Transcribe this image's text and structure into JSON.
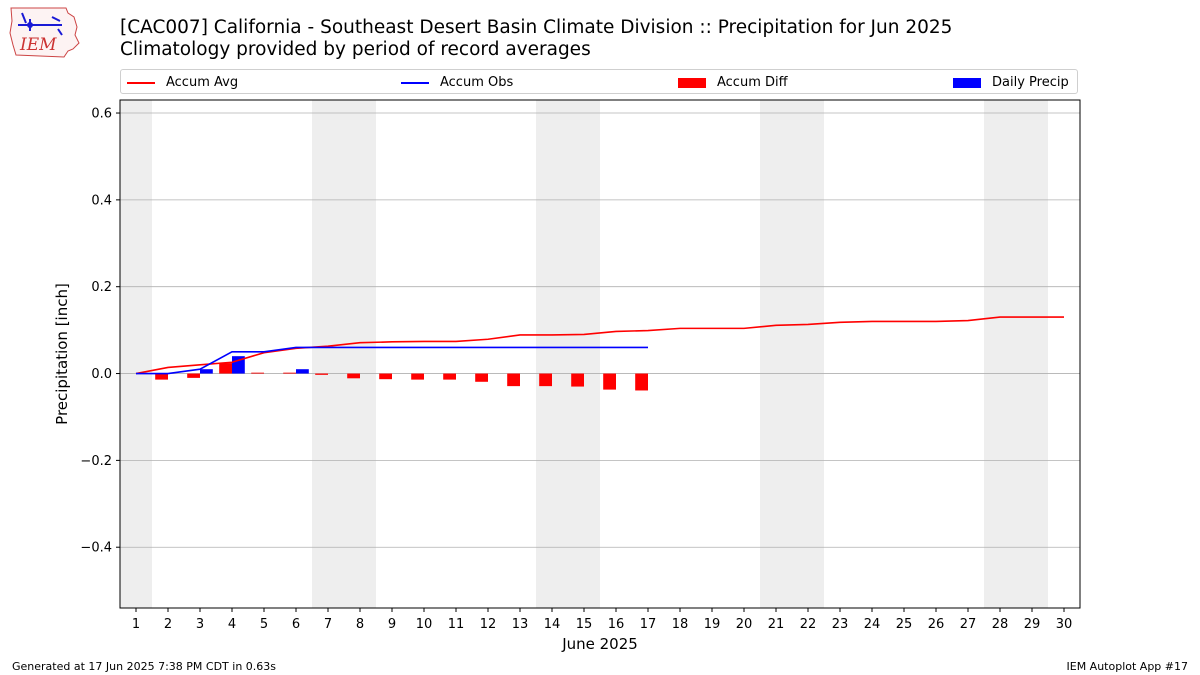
{
  "header": {
    "title_line1": "[CAC007] California - Southeast Desert Basin Climate Division :: Precipitation for Jun 2025",
    "title_line2": "Climatology provided by period of record averages",
    "logo_text": "IEM"
  },
  "legend": {
    "accum_avg": "Accum Avg",
    "accum_obs": "Accum Obs",
    "accum_diff": "Accum Diff",
    "daily_precip": "Daily Precip"
  },
  "colors": {
    "accum_avg": "#ff0000",
    "accum_obs": "#0000ff",
    "accum_diff": "#ff0000",
    "daily_precip": "#0000ff",
    "weekend_shade": "#eeeeee",
    "grid": "#b0b0b0"
  },
  "footer": {
    "left": "Generated at 17 Jun 2025 7:38 PM CDT in 0.63s",
    "right": "IEM Autoplot App #17"
  },
  "chart_data": {
    "type": "bar",
    "title": "[CAC007] California - Southeast Desert Basin Climate Division :: Precipitation for Jun 2025",
    "subtitle": "Climatology provided by period of record averages",
    "xlabel": "June 2025",
    "ylabel": "Precipitation [inch]",
    "xlim": [
      0.5,
      30.5
    ],
    "ylim": [
      -0.54,
      0.63
    ],
    "yticks": [
      -0.4,
      -0.2,
      0.0,
      0.2,
      0.4,
      0.6
    ],
    "ytick_labels": [
      "−0.4",
      "−0.2",
      "0.0",
      "0.2",
      "0.4",
      "0.6"
    ],
    "days": [
      1,
      2,
      3,
      4,
      5,
      6,
      7,
      8,
      9,
      10,
      11,
      12,
      13,
      14,
      15,
      16,
      17,
      18,
      19,
      20,
      21,
      22,
      23,
      24,
      25,
      26,
      27,
      28,
      29,
      30
    ],
    "weekend_days": [
      1,
      7,
      8,
      14,
      15,
      21,
      22,
      28,
      29
    ],
    "grid": "horizontal",
    "series": [
      {
        "name": "Accum Avg",
        "kind": "line",
        "values": [
          0.0,
          0.014,
          0.02,
          0.026,
          0.048,
          0.058,
          0.063,
          0.071,
          0.073,
          0.074,
          0.074,
          0.079,
          0.089,
          0.089,
          0.09,
          0.097,
          0.099,
          0.104,
          0.104,
          0.104,
          0.111,
          0.113,
          0.118,
          0.12,
          0.12,
          0.12,
          0.122,
          0.13,
          0.13,
          0.13
        ]
      },
      {
        "name": "Accum Obs",
        "kind": "line",
        "values": [
          0.0,
          0.0,
          0.01,
          0.05,
          0.05,
          0.06,
          0.06,
          0.06,
          0.06,
          0.06,
          0.06,
          0.06,
          0.06,
          0.06,
          0.06,
          0.06,
          0.06
        ]
      },
      {
        "name": "Accum Diff",
        "kind": "bar",
        "values": [
          0.0,
          -0.014,
          -0.01,
          0.024,
          0.002,
          0.002,
          -0.003,
          -0.011,
          -0.013,
          -0.014,
          -0.014,
          -0.019,
          -0.029,
          -0.029,
          -0.03,
          -0.037,
          -0.039
        ]
      },
      {
        "name": "Daily Precip",
        "kind": "bar",
        "values": [
          0.0,
          0.0,
          0.01,
          0.04,
          0.0,
          0.01,
          0.0,
          0.0,
          0.0,
          0.0,
          0.0,
          0.0,
          0.0,
          0.0,
          0.0,
          0.0,
          0.0
        ]
      }
    ]
  }
}
